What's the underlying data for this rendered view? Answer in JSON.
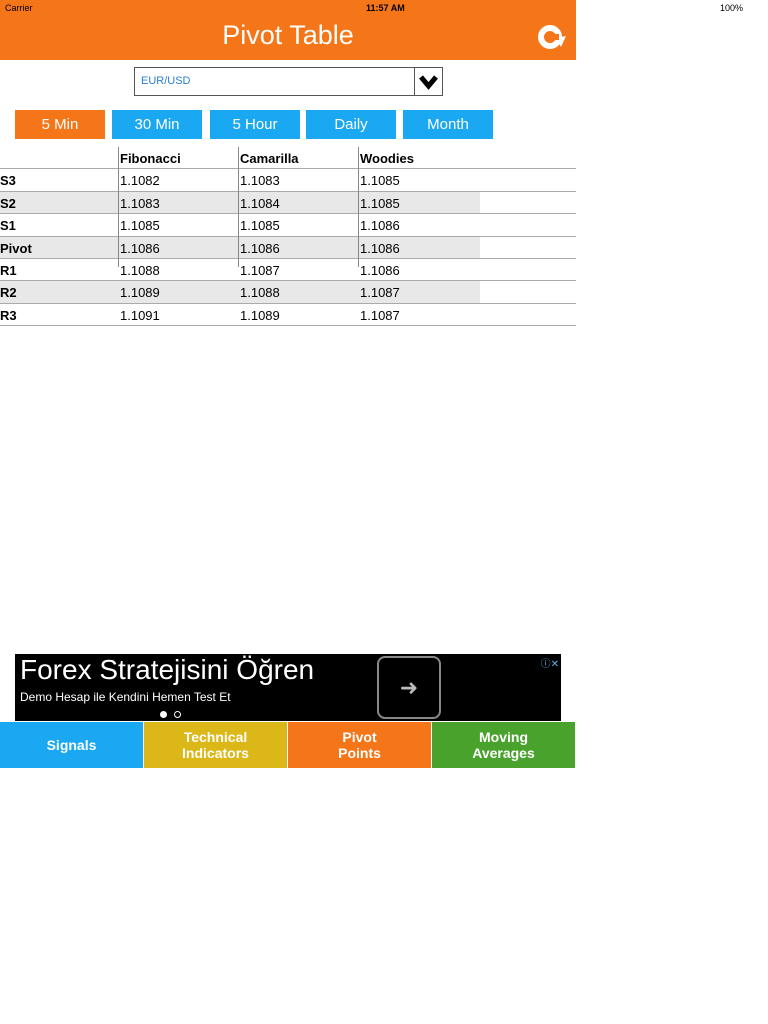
{
  "status_bar": {
    "carrier": "Carrier",
    "time": "11:57 AM",
    "battery": "100%"
  },
  "header": {
    "title": "Pivot Table",
    "refresh_icon": "refresh-icon"
  },
  "picker": {
    "value": "EUR/USD",
    "icon": "chevron-down-icon"
  },
  "timeframes": [
    {
      "label": "5 Min",
      "active": true
    },
    {
      "label": "30 Min"
    },
    {
      "label": "5 Hour"
    },
    {
      "label": "Daily"
    },
    {
      "label": "Month"
    }
  ],
  "table": {
    "columns": [
      "",
      "Fibonacci",
      "Camarilla",
      "Woodies"
    ],
    "rows": [
      [
        "S3",
        "1.1082",
        "1.1083",
        "1.1085"
      ],
      [
        "S2",
        "1.1083",
        "1.1084",
        "1.1085"
      ],
      [
        "S1",
        "1.1085",
        "1.1085",
        "1.1086"
      ],
      [
        "Pivot",
        "1.1086",
        "1.1086",
        "1.1086"
      ],
      [
        "R1",
        "1.1088",
        "1.1087",
        "1.1086"
      ],
      [
        "R2",
        "1.1089",
        "1.1088",
        "1.1087"
      ],
      [
        "R3",
        "1.1091",
        "1.1089",
        "1.1087"
      ]
    ]
  },
  "ad": {
    "headline": "Forex Stratejisini Öğren",
    "subtitle": "Demo Hesap ile Kendini Hemen Test Et",
    "arrow": "➜",
    "info": "ⓘ✕"
  },
  "bottom_nav": [
    {
      "label": "Signals",
      "color": "#1ba8f2"
    },
    {
      "label": "Technical\nIndicators",
      "color": "#dbb718"
    },
    {
      "label": "Pivot\nPoints",
      "color": "#f57519"
    },
    {
      "label": "Moving\nAverages",
      "color": "#48a22c"
    }
  ]
}
